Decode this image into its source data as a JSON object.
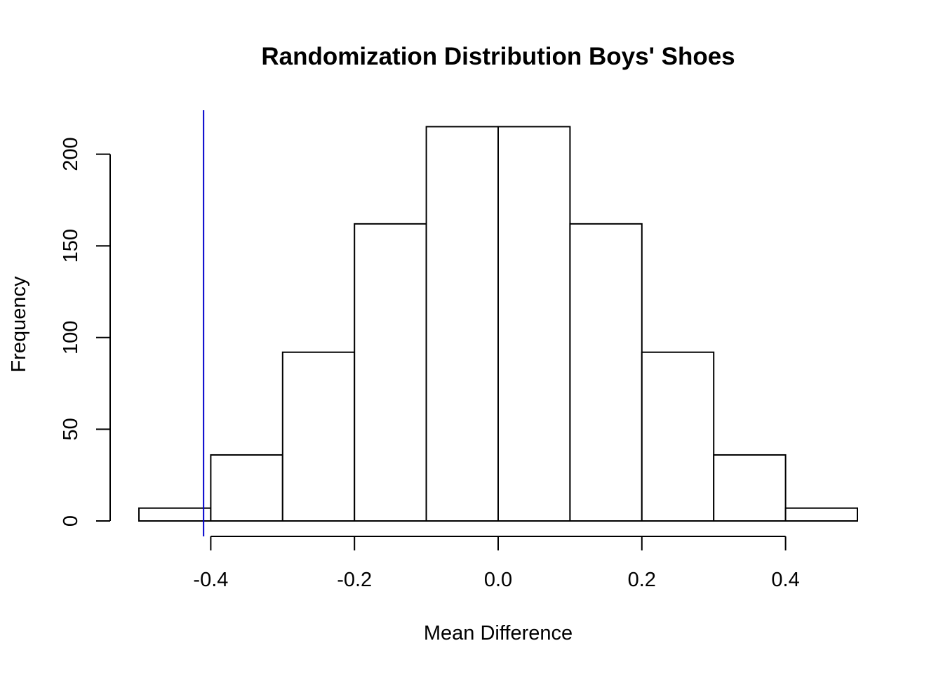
{
  "chart_data": {
    "type": "bar",
    "title": "Randomization Distribution Boys' Shoes",
    "xlabel": "Mean Difference",
    "ylabel": "Frequency",
    "bins": [
      {
        "start": -0.5,
        "end": -0.4,
        "count": 7
      },
      {
        "start": -0.4,
        "end": -0.3,
        "count": 36
      },
      {
        "start": -0.3,
        "end": -0.2,
        "count": 92
      },
      {
        "start": -0.2,
        "end": -0.1,
        "count": 162
      },
      {
        "start": -0.1,
        "end": 0.0,
        "count": 215
      },
      {
        "start": 0.0,
        "end": 0.1,
        "count": 215
      },
      {
        "start": 0.1,
        "end": 0.2,
        "count": 162
      },
      {
        "start": 0.2,
        "end": 0.3,
        "count": 92
      },
      {
        "start": 0.3,
        "end": 0.4,
        "count": 36
      },
      {
        "start": 0.4,
        "end": 0.5,
        "count": 7
      }
    ],
    "xlim": [
      -0.5,
      0.5
    ],
    "ylim": [
      0,
      215
    ],
    "x_ticks": [
      -0.4,
      -0.2,
      0.0,
      0.2,
      0.4
    ],
    "x_tick_labels": [
      "-0.4",
      "-0.2",
      "0.0",
      "0.2",
      "0.4"
    ],
    "y_ticks": [
      0,
      50,
      100,
      150,
      200
    ],
    "y_tick_labels": [
      "0",
      "50",
      "100",
      "150",
      "200"
    ],
    "reference_line": {
      "x": -0.41,
      "color": "#0000cc"
    },
    "grid": false,
    "bar_fill": "#ffffff",
    "bar_stroke": "#000000"
  }
}
